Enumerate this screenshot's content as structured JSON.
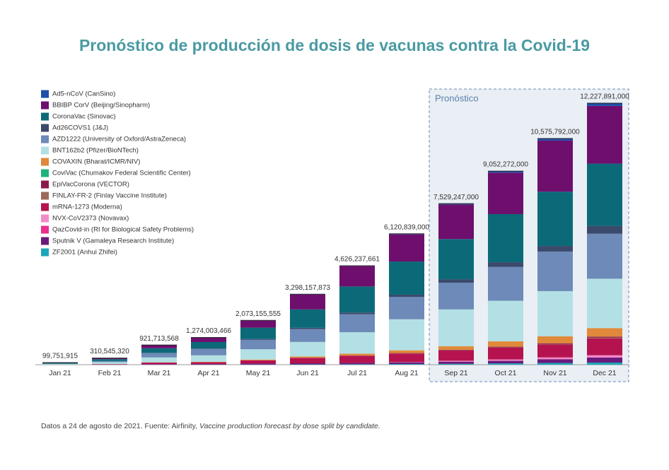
{
  "chart_data": {
    "type": "stacked_bar",
    "title": "Pronóstico de producción de dosis de vacunas contra la Covid-19",
    "forecast_label": "Pronóstico",
    "forecast_from": "Sep 21",
    "categories": [
      "Jan 21",
      "Feb 21",
      "Mar 21",
      "Apr 21",
      "May 21",
      "Jun 21",
      "Jul 21",
      "Aug 21",
      "Sep 21",
      "Oct 21",
      "Nov 21",
      "Dec 21"
    ],
    "totals": {
      "values": [
        99751915,
        310545320,
        921713568,
        1274003466,
        2073155555,
        3298157873,
        4626237661,
        6120839000,
        7529247000,
        9052272000,
        10575792000,
        12227891000
      ],
      "value_labels": [
        "99,751,915",
        "310,545,320",
        "921,713,568",
        "1,274,003,466",
        "2,073,155,555",
        "3,298,157,873",
        "4,626,237,661",
        "6,120,839,000",
        "7,529,247,000",
        "9,052,272,000",
        "10,575,792,000",
        "12,227,891,000"
      ]
    },
    "series": [
      {
        "name": "Ad5-nCoV (CanSino)",
        "color": "#1f4fa8",
        "values": [
          0,
          1000000.0,
          3000000.0,
          5000000.0,
          10000000.0,
          15000000.0,
          20000000.0,
          30000000.0,
          40000000.0,
          70000000.0,
          100000000.0,
          130000000.0
        ]
      },
      {
        "name": "BBIBP CorV (Beijing/Sinopharm)",
        "color": "#6e0f6e",
        "values": [
          20000000.0,
          50000000.0,
          150000000.0,
          210000000.0,
          330000000.0,
          700000000.0,
          950000000.0,
          1270000000.0,
          1615000000.0,
          1940000000.0,
          2390000000.0,
          2700000000.0
        ]
      },
      {
        "name": "CoronaVac (Sinovac)",
        "color": "#0c6a78",
        "values": [
          40000000.0,
          90000000.0,
          220000000.0,
          300000000.0,
          530000000.0,
          860000000.0,
          1220000000.0,
          1550000000.0,
          1880000000.0,
          2250000000.0,
          2540000000.0,
          2910000000.0
        ]
      },
      {
        "name": "Ad26COVS1 (J&J)",
        "color": "#3b4a6b",
        "values": [
          0,
          0,
          10000000.0,
          20000000.0,
          40000000.0,
          60000000.0,
          80000000.0,
          100000000.0,
          160000000.0,
          220000000.0,
          260000000.0,
          360000000.0
        ]
      },
      {
        "name": "AZD1222 (University of Oxford/AstraZeneca)",
        "color": "#6d8ab8",
        "values": [
          5000000.0,
          50000000.0,
          200000000.0,
          300000000.0,
          440000000.0,
          600000000.0,
          840000000.0,
          1050000000.0,
          1250000000.0,
          1580000000.0,
          1850000000.0,
          2110000000.0
        ]
      },
      {
        "name": "BNT162b2 (Pfizer/BioNTech)",
        "color": "#b3e0e4",
        "values": [
          30000000.0,
          90000000.0,
          230000000.0,
          300000000.0,
          480000000.0,
          680000000.0,
          1000000000.0,
          1450000000.0,
          1720000000.0,
          1900000000.0,
          2110000000.0,
          2310000000.0
        ]
      },
      {
        "name": "COVAXIN (Bharat/ICMR/NIV)",
        "color": "#e0893a",
        "values": [
          0,
          2000000.0,
          10000000.0,
          20000000.0,
          35000000.0,
          60000000.0,
          90000000.0,
          130000000.0,
          170000000.0,
          250000000.0,
          330000000.0,
          400000000.0
        ]
      },
      {
        "name": "CoviVac (Chumakov Federal Scientific Center)",
        "color": "#1db37a",
        "values": [
          0,
          0,
          0,
          0,
          0,
          0,
          0,
          0,
          0,
          0,
          0,
          0
        ]
      },
      {
        "name": "EpiVacCorona (VECTOR)",
        "color": "#8b1c4a",
        "values": [
          0,
          0,
          1000000.0,
          2000000.0,
          3000000.0,
          5000000.0,
          10000000.0,
          15000000.0,
          20000000.0,
          30000000.0,
          40000000.0,
          50000000.0
        ]
      },
      {
        "name": "FINLAY-FR-2 (Finlay Vaccine Institute)",
        "color": "#9c6a5a",
        "values": [
          0,
          0,
          0,
          1000000.0,
          2000000.0,
          3000000.0,
          5000000.0,
          5000000.0,
          10000000.0,
          15000000.0,
          20000000.0,
          30000000.0
        ]
      },
      {
        "name": "mRNA-1273 (Moderna)",
        "color": "#b5134f",
        "values": [
          3000000.0,
          20000000.0,
          70000000.0,
          80000000.0,
          150000000.0,
          250000000.0,
          330000000.0,
          400000000.0,
          480000000.0,
          550000000.0,
          600000000.0,
          790000000.0
        ]
      },
      {
        "name": "NVX-CoV2373 (Novavax)",
        "color": "#f28ac8",
        "values": [
          0,
          0,
          0,
          0,
          0,
          0,
          0,
          10000000.0,
          40000000.0,
          60000000.0,
          80000000.0,
          100000000.0
        ]
      },
      {
        "name": "QazCovid-in (RI for Biological Safety Problems)",
        "color": "#e8308c",
        "values": [
          0,
          0,
          0,
          0,
          1000000.0,
          1000000.0,
          2000000.0,
          3000000.0,
          5000000.0,
          5000000.0,
          10000000.0,
          10000000.0
        ]
      },
      {
        "name": "Sputnik V (Gamaleya Research Institute)",
        "color": "#6a1a7a",
        "values": [
          2000000.0,
          8000000.0,
          25000000.0,
          30000000.0,
          40000000.0,
          50000000.0,
          60000000.0,
          80000000.0,
          100000000.0,
          120000000.0,
          170000000.0,
          230000000.0
        ]
      },
      {
        "name": "ZF2001 (Anhui Zhifei)",
        "color": "#1aa7b8",
        "values": [
          0,
          0,
          3000000.0,
          5000000.0,
          10000000.0,
          15000000.0,
          20000000.0,
          30000000.0,
          40000000.0,
          60000000.0,
          80000000.0,
          100000000.0
        ]
      }
    ],
    "footnote": "Datos a 24 de agosto de 2021. Fuente: Airfinity, ",
    "footnote_italic": "Vaccine production forecast by dose split by candidate."
  }
}
